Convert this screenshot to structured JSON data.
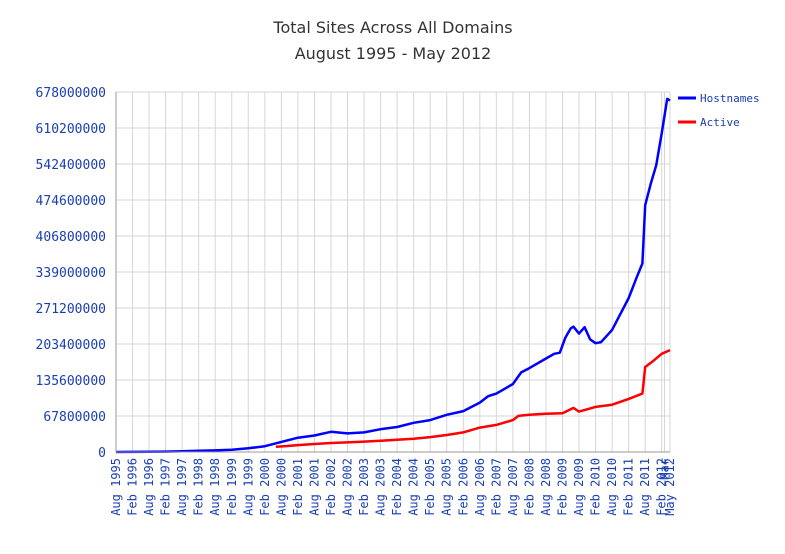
{
  "chart_data": {
    "type": "line",
    "title": "Total Sites Across All Domains",
    "subtitle": "August 1995 - May 2012",
    "xlabel": "",
    "ylabel": "",
    "ylim": [
      0,
      678000000
    ],
    "yticks": [
      "678000000",
      "610200000",
      "542400000",
      "474600000",
      "406800000",
      "339000000",
      "271200000",
      "203400000",
      "135600000",
      "67800000",
      "0"
    ],
    "xticks": [
      "Aug 1995",
      "Feb 1996",
      "Aug 1996",
      "Feb 1997",
      "Aug 1997",
      "Feb 1998",
      "Aug 1998",
      "Feb 1999",
      "Aug 1999",
      "Feb 2000",
      "Aug 2000",
      "Feb 2001",
      "Aug 2001",
      "Feb 2002",
      "Aug 2002",
      "Feb 2003",
      "Aug 2003",
      "Feb 2004",
      "Aug 2004",
      "Feb 2005",
      "Aug 2005",
      "Feb 2006",
      "Aug 2006",
      "Feb 2007",
      "Aug 2007",
      "Feb 2008",
      "Aug 2008",
      "Feb 2009",
      "Aug 2009",
      "Feb 2010",
      "Aug 2010",
      "Feb 2011",
      "Aug 2011",
      "Feb 2012",
      "Mar",
      "May 2012"
    ],
    "grid": true,
    "legend_position": "top-right",
    "series": [
      {
        "name": "Hostnames",
        "color": "#0000ff",
        "points": [
          [
            "1995-08",
            20000
          ],
          [
            "1996-02",
            100000
          ],
          [
            "1996-08",
            340000
          ],
          [
            "1997-02",
            740000
          ],
          [
            "1997-08",
            1500000
          ],
          [
            "1998-02",
            2200000
          ],
          [
            "1998-08",
            3000000
          ],
          [
            "1999-02",
            4300000
          ],
          [
            "1999-08",
            7000000
          ],
          [
            "2000-02",
            11000000
          ],
          [
            "2000-08",
            19000000
          ],
          [
            "2001-02",
            27000000
          ],
          [
            "2001-08",
            31000000
          ],
          [
            "2002-02",
            38000000
          ],
          [
            "2002-08",
            35000000
          ],
          [
            "2003-02",
            37000000
          ],
          [
            "2003-08",
            43000000
          ],
          [
            "2004-02",
            47000000
          ],
          [
            "2004-08",
            55000000
          ],
          [
            "2005-02",
            60000000
          ],
          [
            "2005-08",
            70000000
          ],
          [
            "2006-02",
            77000000
          ],
          [
            "2006-08",
            93000000
          ],
          [
            "2006-11",
            105000000
          ],
          [
            "2007-02",
            110000000
          ],
          [
            "2007-08",
            128000000
          ],
          [
            "2007-11",
            150000000
          ],
          [
            "2008-02",
            158000000
          ],
          [
            "2008-08",
            176000000
          ],
          [
            "2008-11",
            185000000
          ],
          [
            "2009-01",
            187000000
          ],
          [
            "2009-03",
            215000000
          ],
          [
            "2009-05",
            233000000
          ],
          [
            "2009-06",
            236000000
          ],
          [
            "2009-08",
            223000000
          ],
          [
            "2009-10",
            235000000
          ],
          [
            "2009-12",
            212000000
          ],
          [
            "2010-02",
            205000000
          ],
          [
            "2010-04",
            207000000
          ],
          [
            "2010-08",
            230000000
          ],
          [
            "2010-11",
            260000000
          ],
          [
            "2011-02",
            290000000
          ],
          [
            "2011-05",
            330000000
          ],
          [
            "2011-07",
            355000000
          ],
          [
            "2011-08",
            465000000
          ],
          [
            "2011-10",
            505000000
          ],
          [
            "2011-12",
            540000000
          ],
          [
            "2012-02",
            600000000
          ],
          [
            "2012-04",
            665000000
          ],
          [
            "2012-05",
            662000000
          ]
        ]
      },
      {
        "name": "Active",
        "color": "#ff0000",
        "points": [
          [
            "2000-06",
            10000000
          ],
          [
            "2000-09",
            11000000
          ],
          [
            "2001-02",
            13000000
          ],
          [
            "2001-08",
            15000000
          ],
          [
            "2002-02",
            17000000
          ],
          [
            "2002-08",
            18000000
          ],
          [
            "2003-02",
            19500000
          ],
          [
            "2003-08",
            21000000
          ],
          [
            "2004-02",
            23000000
          ],
          [
            "2004-08",
            25000000
          ],
          [
            "2005-02",
            28000000
          ],
          [
            "2005-08",
            32000000
          ],
          [
            "2006-02",
            37000000
          ],
          [
            "2006-08",
            46000000
          ],
          [
            "2007-02",
            51000000
          ],
          [
            "2007-08",
            60000000
          ],
          [
            "2007-10",
            68000000
          ],
          [
            "2008-02",
            70000000
          ],
          [
            "2008-08",
            72000000
          ],
          [
            "2009-02",
            73000000
          ],
          [
            "2009-06",
            83000000
          ],
          [
            "2009-08",
            76000000
          ],
          [
            "2010-02",
            85000000
          ],
          [
            "2010-08",
            89000000
          ],
          [
            "2011-02",
            100000000
          ],
          [
            "2011-07",
            110000000
          ],
          [
            "2011-08",
            160000000
          ],
          [
            "2011-11",
            172000000
          ],
          [
            "2012-02",
            185000000
          ],
          [
            "2012-05",
            192000000
          ]
        ]
      }
    ]
  }
}
